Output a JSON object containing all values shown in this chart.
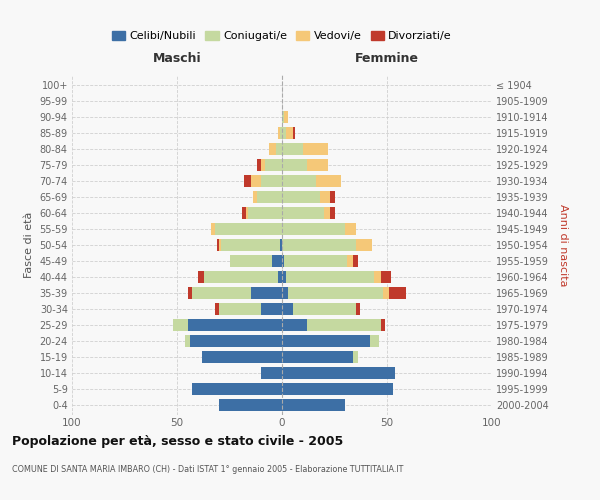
{
  "age_groups": [
    "0-4",
    "5-9",
    "10-14",
    "15-19",
    "20-24",
    "25-29",
    "30-34",
    "35-39",
    "40-44",
    "45-49",
    "50-54",
    "55-59",
    "60-64",
    "65-69",
    "70-74",
    "75-79",
    "80-84",
    "85-89",
    "90-94",
    "95-99",
    "100+"
  ],
  "birth_years": [
    "2000-2004",
    "1995-1999",
    "1990-1994",
    "1985-1989",
    "1980-1984",
    "1975-1979",
    "1970-1974",
    "1965-1969",
    "1960-1964",
    "1955-1959",
    "1950-1954",
    "1945-1949",
    "1940-1944",
    "1935-1939",
    "1930-1934",
    "1925-1929",
    "1920-1924",
    "1915-1919",
    "1910-1914",
    "1905-1909",
    "≤ 1904"
  ],
  "maschi": {
    "celibi": [
      30,
      43,
      10,
      38,
      44,
      45,
      10,
      15,
      2,
      5,
      1,
      0,
      0,
      0,
      0,
      0,
      0,
      0,
      0,
      0,
      0
    ],
    "coniugati": [
      0,
      0,
      0,
      0,
      2,
      7,
      20,
      28,
      35,
      20,
      28,
      32,
      16,
      12,
      10,
      8,
      3,
      1,
      0,
      0,
      0
    ],
    "vedovi": [
      0,
      0,
      0,
      0,
      0,
      0,
      0,
      0,
      0,
      0,
      1,
      2,
      1,
      2,
      5,
      2,
      3,
      1,
      0,
      0,
      0
    ],
    "divorziati": [
      0,
      0,
      0,
      0,
      0,
      0,
      2,
      2,
      3,
      0,
      1,
      0,
      2,
      0,
      3,
      2,
      0,
      0,
      0,
      0,
      0
    ]
  },
  "femmine": {
    "nubili": [
      30,
      53,
      54,
      34,
      42,
      12,
      5,
      3,
      2,
      1,
      0,
      0,
      0,
      0,
      0,
      0,
      0,
      0,
      0,
      0,
      0
    ],
    "coniugate": [
      0,
      0,
      0,
      2,
      4,
      35,
      30,
      45,
      42,
      30,
      35,
      30,
      20,
      18,
      16,
      12,
      10,
      2,
      1,
      0,
      0
    ],
    "vedove": [
      0,
      0,
      0,
      0,
      0,
      0,
      0,
      3,
      3,
      3,
      8,
      5,
      3,
      5,
      12,
      10,
      12,
      3,
      2,
      0,
      0
    ],
    "divorziate": [
      0,
      0,
      0,
      0,
      0,
      2,
      2,
      8,
      5,
      2,
      0,
      0,
      2,
      2,
      0,
      0,
      0,
      1,
      0,
      0,
      0
    ]
  },
  "colors": {
    "celibi": "#3d6fa5",
    "coniugati": "#c5d9a0",
    "vedovi": "#f5c878",
    "divorziati": "#c0392b"
  },
  "title": "Popolazione per età, sesso e stato civile - 2005",
  "subtitle": "COMUNE DI SANTA MARIA IMBARO (CH) - Dati ISTAT 1° gennaio 2005 - Elaborazione TUTTITALIA.IT",
  "xlabel_left": "Maschi",
  "xlabel_right": "Femmine",
  "ylabel_left": "Fasce di età",
  "ylabel_right": "Anni di nascita",
  "xlim": 100,
  "bg_color": "#f8f8f8",
  "grid_color": "#cccccc",
  "legend_labels": [
    "Celibi/Nubili",
    "Coniugati/e",
    "Vedovi/e",
    "Divorziati/e"
  ]
}
